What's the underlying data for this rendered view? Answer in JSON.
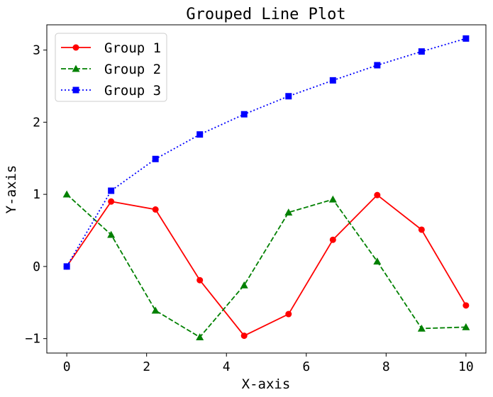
{
  "chart_data": {
    "type": "line",
    "title": "Grouped Line Plot",
    "xlabel": "X-axis",
    "ylabel": "Y-axis",
    "xlim": [
      -0.5,
      10.5
    ],
    "ylim": [
      -1.2,
      3.35
    ],
    "xticks": [
      0,
      2,
      4,
      6,
      8,
      10
    ],
    "yticks": [
      -1,
      0,
      1,
      2,
      3
    ],
    "xtick_labels": [
      "0",
      "2",
      "4",
      "6",
      "8",
      "10"
    ],
    "ytick_labels": [
      "−1",
      "0",
      "1",
      "2",
      "3"
    ],
    "grid": false,
    "legend_position": "top-left",
    "x": [
      0,
      1.111,
      2.222,
      3.333,
      4.444,
      5.556,
      6.667,
      7.778,
      8.889,
      10
    ],
    "series": [
      {
        "name": "Group 1",
        "color": "#ff0000",
        "line_style": "solid",
        "marker": "circle",
        "values": [
          0,
          0.9,
          0.79,
          -0.19,
          -0.96,
          -0.66,
          0.37,
          0.99,
          0.51,
          -0.54
        ]
      },
      {
        "name": "Group 2",
        "color": "#008000",
        "line_style": "dashed",
        "marker": "triangle",
        "values": [
          1.0,
          0.44,
          -0.61,
          -0.98,
          -0.26,
          0.75,
          0.93,
          0.07,
          -0.86,
          -0.84
        ]
      },
      {
        "name": "Group 3",
        "color": "#0000ff",
        "line_style": "dotted",
        "marker": "square",
        "values": [
          0,
          1.05,
          1.49,
          1.83,
          2.11,
          2.36,
          2.58,
          2.79,
          2.98,
          3.16
        ]
      }
    ]
  }
}
